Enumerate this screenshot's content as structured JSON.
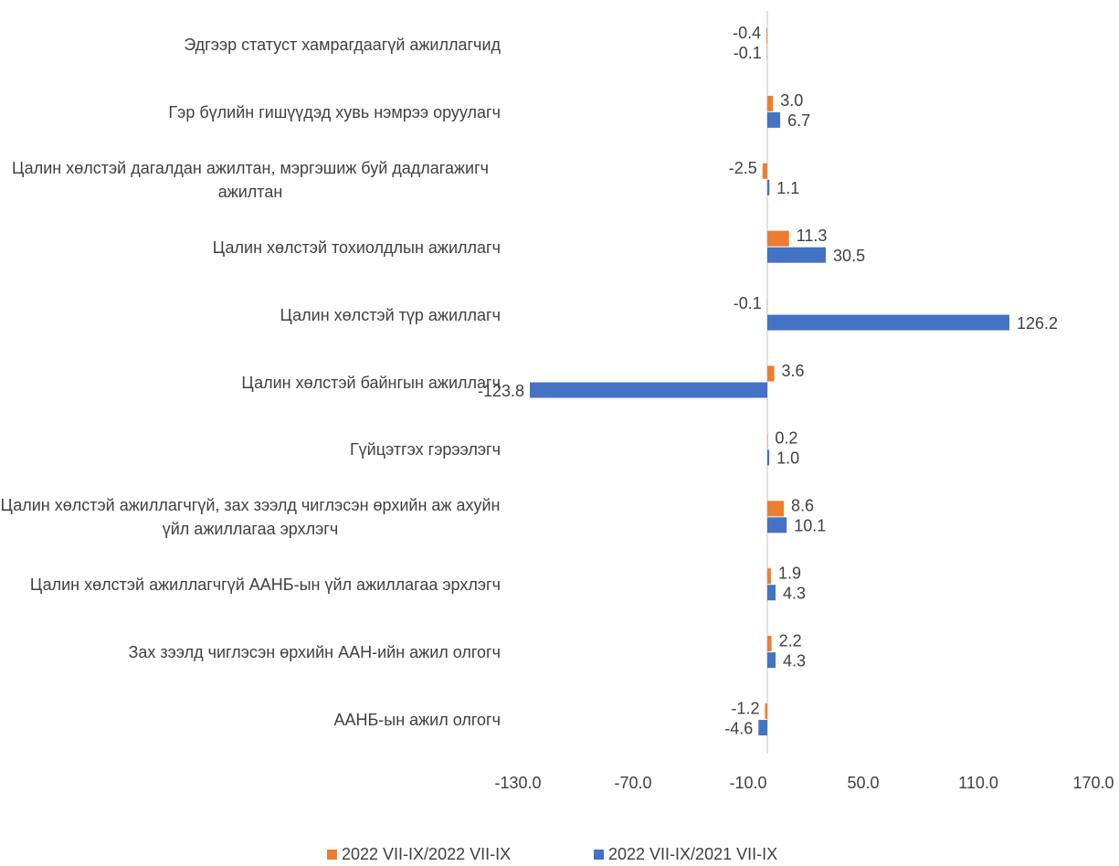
{
  "chart_data": {
    "type": "bar",
    "orientation": "horizontal",
    "categories": [
      "Эдгээр статуст хамрагдаагүй ажиллагчид",
      "Гэр бүлийн гишүүдэд хувь нэмрээ оруулагч",
      "Цалин хөлстэй дагалдан ажилтан, мэргэшиж буй дадлагажигч ажилтан",
      "Цалин хөлстэй тохиолдлын ажиллагч",
      "Цалин хөлстэй түр ажиллагч",
      "Цалин хөлстэй байнгын ажиллагч",
      "Гүйцэтгэх гэрээлэгч",
      "Цалин хөлстэй ажиллагчгүй, зах зээлд чиглэсэн өрхийн аж ахуйн үйл ажиллагаа эрхлэгч",
      "Цалин хөлстэй ажиллагчгүй ААНБ-ын үйл ажиллагаа эрхлэгч",
      "Зах зээлд чиглэсэн өрхийн ААН-ийн ажил олгогч",
      "ААНБ-ын ажил олгогч"
    ],
    "series": [
      {
        "name": "2022 VII-IX/2022 VII-IX",
        "color": "#ed7d31",
        "values": [
          -0.4,
          3.0,
          -2.5,
          11.3,
          -0.1,
          3.6,
          0.2,
          8.6,
          1.9,
          2.2,
          -1.2
        ],
        "value_labels": [
          "-0.4",
          "3.0",
          "-2.5",
          "11.3",
          "-0.1",
          "3.6",
          "0.2",
          "8.6",
          "1.9",
          "2.2",
          "-1.2"
        ]
      },
      {
        "name": "2022 VII-IX/2021 VII-IX",
        "color": "#4472c4",
        "values": [
          -0.1,
          6.7,
          1.1,
          30.5,
          126.2,
          -123.8,
          1.0,
          10.1,
          4.3,
          4.3,
          -4.6
        ],
        "value_labels": [
          "-0.1",
          "6.7",
          "1.1",
          "30.5",
          "126.2",
          "-123.8",
          "1.0",
          "10.1",
          "4.3",
          "4.3",
          "-4.6"
        ]
      }
    ],
    "xlim": [
      -130,
      170
    ],
    "xticks": [
      {
        "value": -130,
        "label": "-130.0"
      },
      {
        "value": -70,
        "label": "-70.0"
      },
      {
        "value": -10,
        "label": "-10.0"
      },
      {
        "value": 50,
        "label": "50.0"
      },
      {
        "value": 110,
        "label": "110.0"
      },
      {
        "value": 170,
        "label": "170.0"
      }
    ],
    "legend": "bottom"
  }
}
